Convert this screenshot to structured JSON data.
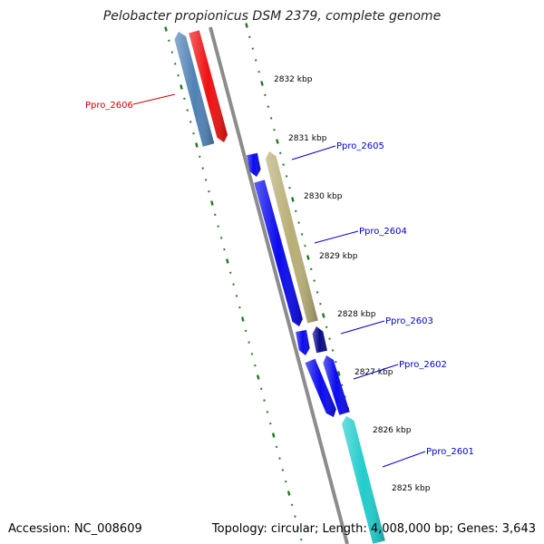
{
  "title": "Pelobacter propionicus DSM 2379, complete genome",
  "footer": {
    "accession": "Accession: NC_008609",
    "summary": "Topology: circular; Length: 4,008,000 bp; Genes: 3,643"
  },
  "colors": {
    "backbone": "#8c8c8c",
    "tick": "#1f7a1f",
    "label_blue": "#0000cc",
    "label_red": "#cc0000"
  },
  "kbp_labels": [
    "2832 kbp",
    "2831 kbp",
    "2830 kbp",
    "2829 kbp",
    "2828 kbp",
    "2827 kbp",
    "2826 kbp",
    "2825 kbp"
  ],
  "genes": [
    {
      "name": "Ppro_2606",
      "color": "#cc0000"
    },
    {
      "name": "Ppro_2605",
      "color": "#0000cc"
    },
    {
      "name": "Ppro_2604",
      "color": "#0000cc"
    },
    {
      "name": "Ppro_2603",
      "color": "#0000cc"
    },
    {
      "name": "Ppro_2602",
      "color": "#0000cc"
    },
    {
      "name": "Ppro_2601",
      "color": "#0000cc"
    }
  ],
  "features": [
    {
      "id": "steel",
      "color": "#4f82b5"
    },
    {
      "id": "red",
      "color": "#ee1111"
    },
    {
      "id": "blue-a",
      "color": "#0a0aee"
    },
    {
      "id": "blue-b",
      "color": "#0a0aee"
    },
    {
      "id": "khaki",
      "color": "#b8ae76"
    },
    {
      "id": "navy",
      "color": "#0a0a88"
    },
    {
      "id": "blue-c",
      "color": "#0a0aee"
    },
    {
      "id": "blue-d",
      "color": "#0a0aee"
    },
    {
      "id": "blue-e",
      "color": "#0a0aee"
    },
    {
      "id": "cyan",
      "color": "#22cccc"
    }
  ]
}
